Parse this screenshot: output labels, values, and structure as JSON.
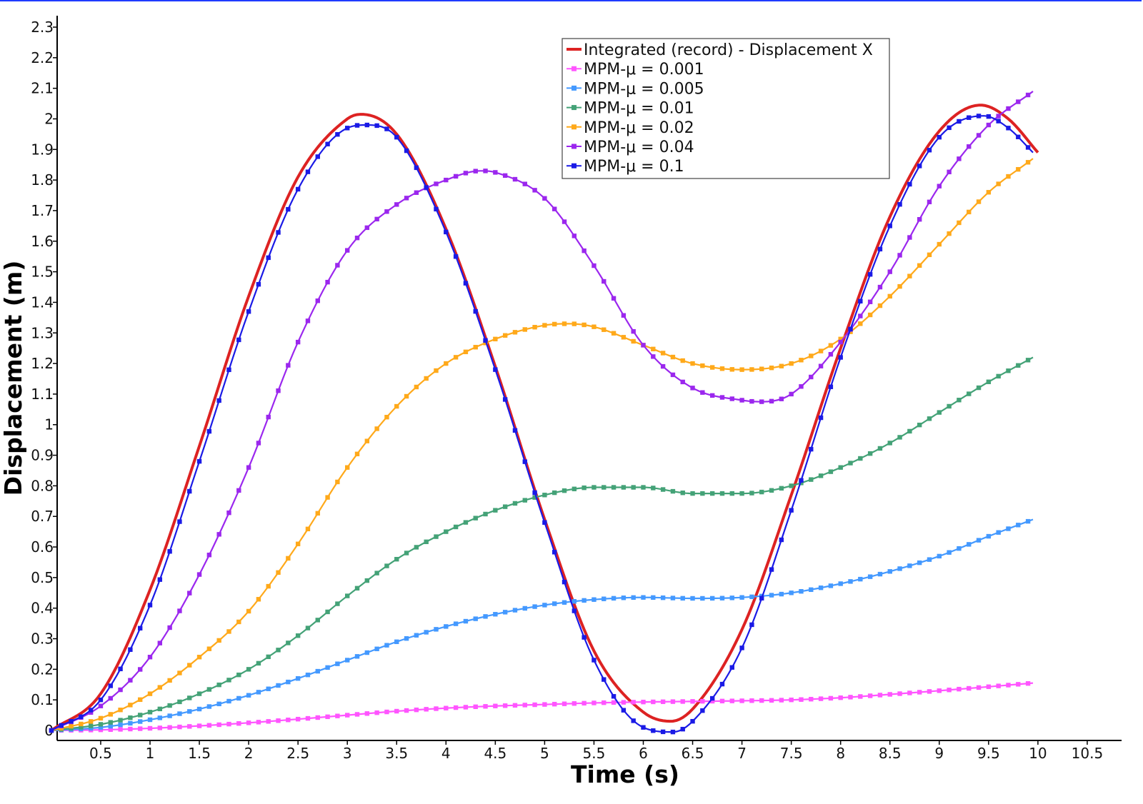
{
  "chart_data": {
    "type": "line",
    "title": "",
    "xlabel": "Time (s)",
    "ylabel": "Displacement (m)",
    "xlim": [
      0,
      11
    ],
    "ylim": [
      0,
      2.35
    ],
    "xticks": [
      0.5,
      1,
      1.5,
      2,
      2.5,
      3,
      3.5,
      4,
      4.5,
      5,
      5.5,
      6,
      6.5,
      7,
      7.5,
      8,
      8.5,
      9,
      9.5,
      10,
      10.5
    ],
    "xtick_labels": [
      "0.5",
      "1",
      "1.5",
      "2",
      "2.5",
      "3",
      "3.5",
      "4",
      "4.5",
      "5",
      "5.5",
      "6",
      "6.5",
      "7",
      "7.5",
      "8",
      "8.5",
      "9",
      "9.5",
      "10",
      "10.5"
    ],
    "yticks": [
      0,
      0.1,
      0.2,
      0.3,
      0.4,
      0.5,
      0.6,
      0.7,
      0.8,
      0.9,
      1,
      1.1,
      1.2,
      1.3,
      1.4,
      1.5,
      1.6,
      1.7,
      1.8,
      1.9,
      2,
      2.1,
      2.2,
      2.3
    ],
    "ytick_labels": [
      "0",
      "0.1",
      "0.2",
      "0.3",
      "0.4",
      "0.5",
      "0.6",
      "0.7",
      "0.8",
      "0.9",
      "1",
      "1.1",
      "1.2",
      "1.3",
      "1.4",
      "1.5",
      "1.6",
      "1.7",
      "1.8",
      "1.9",
      "2",
      "2.1",
      "2.2",
      "2.3"
    ],
    "grid": false,
    "legend_position": "top-right",
    "series": [
      {
        "name": "Integrated (record) - Displacement X",
        "color": "#dd2222",
        "markers": false,
        "x": [
          0,
          0.5,
          1,
          1.5,
          2,
          2.5,
          3,
          3.14,
          3.5,
          4,
          4.5,
          5,
          5.5,
          6,
          6.28,
          6.5,
          7,
          7.5,
          8,
          8.5,
          9,
          9.42,
          9.7,
          10
        ],
        "y": [
          0,
          0.12,
          0.46,
          0.93,
          1.42,
          1.81,
          2.0,
          2.015,
          1.95,
          1.64,
          1.19,
          0.69,
          0.26,
          0.06,
          0.03,
          0.07,
          0.33,
          0.77,
          1.25,
          1.68,
          1.96,
          2.045,
          2.0,
          1.89
        ]
      },
      {
        "name": "MPM-μ = 0.001",
        "color": "#ff55ff",
        "markers": true,
        "x": [
          0,
          0.5,
          1,
          1.5,
          2,
          2.5,
          3,
          3.5,
          4,
          4.5,
          5,
          5.5,
          6,
          6.5,
          7,
          7.5,
          8,
          8.5,
          9,
          9.5,
          9.95
        ],
        "y": [
          0,
          0.002,
          0.007,
          0.015,
          0.025,
          0.037,
          0.05,
          0.063,
          0.073,
          0.08,
          0.085,
          0.09,
          0.093,
          0.095,
          0.097,
          0.1,
          0.107,
          0.118,
          0.13,
          0.143,
          0.155
        ]
      },
      {
        "name": "MPM-μ = 0.005",
        "color": "#4499ff",
        "markers": true,
        "x": [
          0,
          0.5,
          1,
          1.5,
          2,
          2.5,
          3,
          3.5,
          4,
          4.5,
          5,
          5.5,
          6,
          6.5,
          7,
          7.5,
          8,
          8.5,
          9,
          9.5,
          9.95
        ],
        "y": [
          0,
          0.01,
          0.035,
          0.07,
          0.115,
          0.17,
          0.23,
          0.29,
          0.34,
          0.38,
          0.41,
          0.428,
          0.435,
          0.432,
          0.435,
          0.45,
          0.48,
          0.52,
          0.57,
          0.635,
          0.69
        ]
      },
      {
        "name": "MPM-μ = 0.01",
        "color": "#44a277",
        "markers": true,
        "x": [
          0,
          0.5,
          1,
          1.5,
          2,
          2.5,
          3,
          3.5,
          4,
          4.5,
          5,
          5.5,
          6,
          6.5,
          7,
          7.5,
          8,
          8.5,
          9,
          9.5,
          9.95
        ],
        "y": [
          0,
          0.02,
          0.06,
          0.12,
          0.2,
          0.31,
          0.44,
          0.56,
          0.65,
          0.72,
          0.77,
          0.795,
          0.795,
          0.775,
          0.775,
          0.8,
          0.86,
          0.94,
          1.04,
          1.14,
          1.22
        ]
      },
      {
        "name": "MPM-μ = 0.02",
        "color": "#ffa91a",
        "markers": true,
        "x": [
          0,
          0.5,
          1,
          1.5,
          2,
          2.5,
          3,
          3.5,
          4,
          4.5,
          5,
          5.25,
          5.5,
          6,
          6.5,
          7,
          7.5,
          8,
          8.5,
          9,
          9.5,
          9.95
        ],
        "y": [
          0,
          0.04,
          0.12,
          0.24,
          0.39,
          0.61,
          0.86,
          1.06,
          1.2,
          1.28,
          1.325,
          1.33,
          1.32,
          1.26,
          1.2,
          1.18,
          1.2,
          1.28,
          1.42,
          1.59,
          1.76,
          1.87
        ]
      },
      {
        "name": "MPM-μ = 0.04",
        "color": "#9b27ee",
        "markers": true,
        "x": [
          0,
          0.5,
          1,
          1.5,
          2,
          2.5,
          3,
          3.5,
          4,
          4.35,
          4.5,
          5,
          5.5,
          6,
          6.5,
          7,
          7.2,
          7.5,
          8,
          8.5,
          9,
          9.5,
          9.95
        ],
        "y": [
          0,
          0.08,
          0.24,
          0.51,
          0.86,
          1.27,
          1.57,
          1.72,
          1.8,
          1.83,
          1.825,
          1.74,
          1.52,
          1.26,
          1.12,
          1.08,
          1.075,
          1.1,
          1.27,
          1.5,
          1.78,
          1.98,
          2.09
        ]
      },
      {
        "name": "MPM-μ = 0.1",
        "color": "#1a1ae6",
        "markers": true,
        "x": [
          0,
          0.5,
          1,
          1.5,
          2,
          2.5,
          3,
          3.2,
          3.5,
          4,
          4.5,
          5,
          5.5,
          6,
          6.3,
          6.5,
          7,
          7.5,
          8,
          8.5,
          9,
          9.45,
          9.7,
          9.95
        ],
        "y": [
          0,
          0.1,
          0.41,
          0.88,
          1.37,
          1.77,
          1.97,
          1.98,
          1.94,
          1.63,
          1.18,
          0.68,
          0.23,
          0.01,
          -0.005,
          0.03,
          0.27,
          0.72,
          1.22,
          1.65,
          1.94,
          2.01,
          1.97,
          1.89
        ]
      }
    ]
  }
}
